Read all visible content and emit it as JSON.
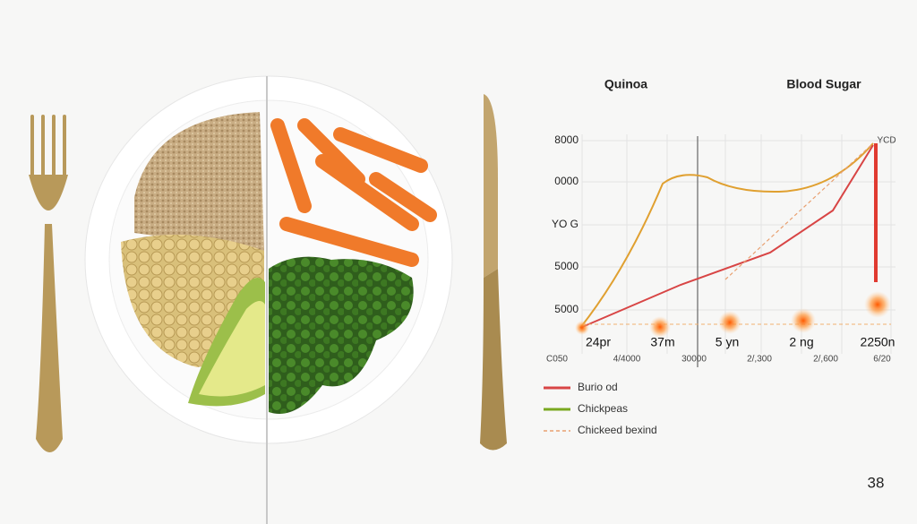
{
  "headings": [
    "Quinoa",
    "Blood Sugar"
  ],
  "chart": {
    "y_labels": [
      "8000",
      "0000",
      "YO G",
      "5000",
      "5000"
    ],
    "corner_label": "YCD",
    "point_labels": [
      "24pr",
      "37m",
      "5 yn",
      "2 ng",
      "2250n"
    ],
    "x_labels": [
      "C050",
      "4/4000",
      "30000",
      "2/,300",
      "2/,600",
      "6/20"
    ],
    "legend": [
      "Burio od",
      "Chickpeas",
      "Chickeed bexind"
    ]
  },
  "page_number": "38"
}
